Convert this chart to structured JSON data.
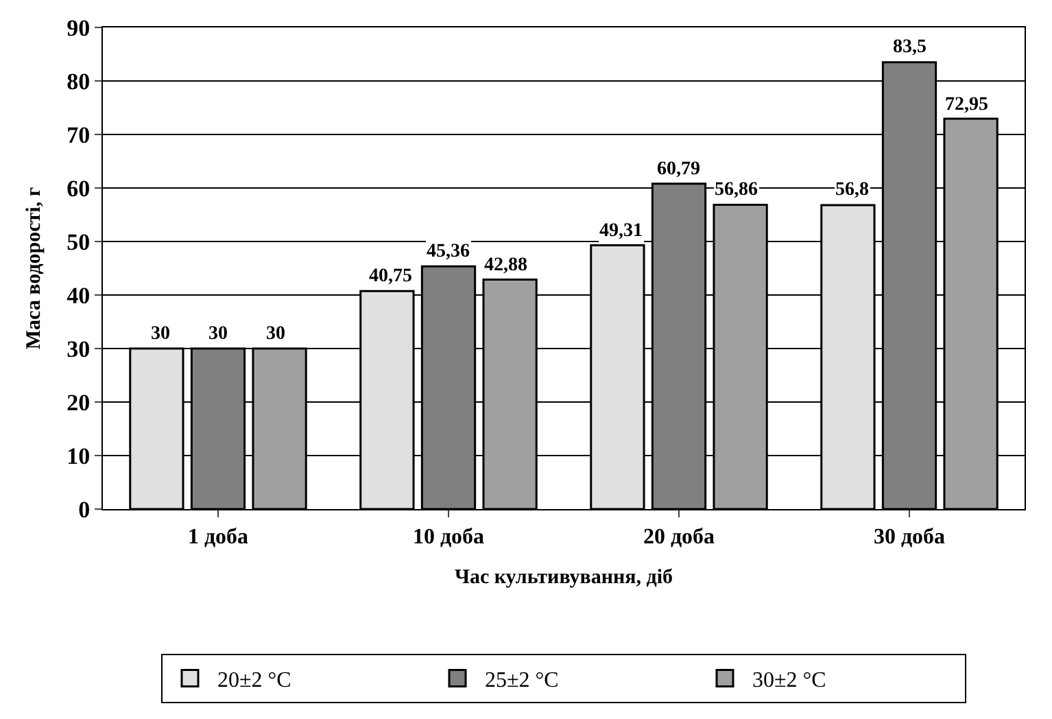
{
  "chart_data": {
    "type": "bar",
    "xlabel": "Час культивування, діб",
    "ylabel": "Маса водорості, г",
    "categories": [
      "1 доба",
      "10 доба",
      "20 доба",
      "30 доба"
    ],
    "series": [
      {
        "name": "20±2 °C",
        "color": "#e0e0e0",
        "values": [
          30,
          40.75,
          49.31,
          56.8
        ],
        "value_labels": [
          "30",
          "40,75",
          "49,31",
          "56,8"
        ]
      },
      {
        "name": "25±2 °C",
        "color": "#808080",
        "values": [
          30,
          45.36,
          60.79,
          83.5
        ],
        "value_labels": [
          "30",
          "45,36",
          "60,79",
          "83,5"
        ]
      },
      {
        "name": "30±2 °C",
        "color": "#a0a0a0",
        "values": [
          30,
          42.88,
          56.86,
          72.95
        ],
        "value_labels": [
          "30",
          "42,88",
          "56,86",
          "72,95"
        ]
      }
    ],
    "ylim": [
      0,
      90
    ],
    "yticks": [
      0,
      10,
      20,
      30,
      40,
      50,
      60,
      70,
      80,
      90
    ],
    "grid": "y",
    "legend": "bottom"
  }
}
